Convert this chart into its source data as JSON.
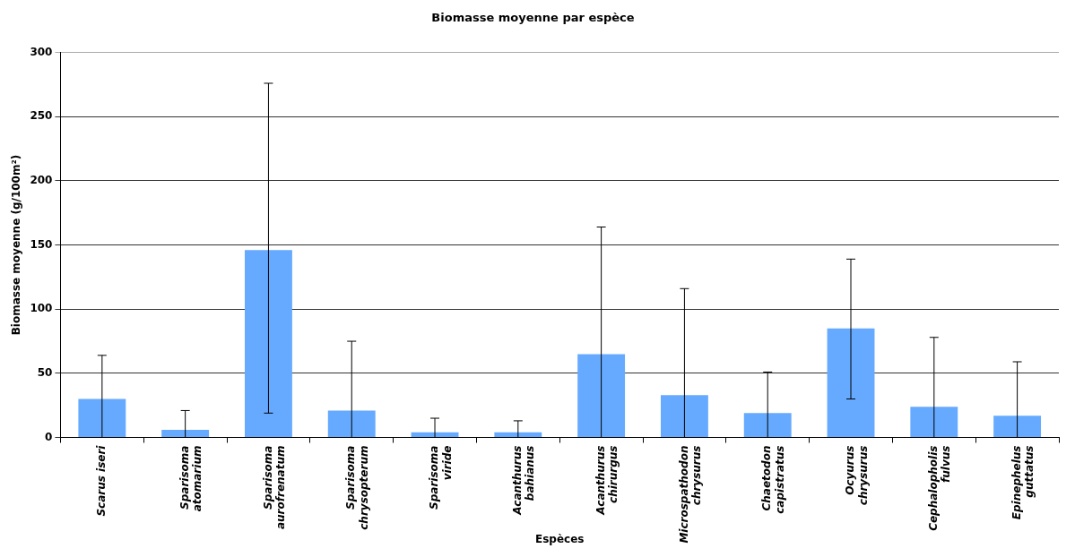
{
  "chart_data": {
    "type": "bar",
    "title": "Biomasse moyenne par espèce",
    "xlabel": "Espèces",
    "ylabel": "Biomasse moyenne (g/100m²)",
    "categories": [
      "Scarus iseri",
      "Sparisoma atomarium",
      "Sparisoma aurofrenatum",
      "Sparisoma chrysopterum",
      "Sparisoma viride",
      "Acanthurus bahianus",
      "Acanthurus chirurgus",
      "Microspathodon chrysurus",
      "Chaetodon capistratus",
      "Ocyurus chrysurus",
      "Cephalopholis fulvus",
      "Epinephelus guttatus"
    ],
    "values": [
      30,
      6,
      146,
      21,
      4,
      4,
      65,
      33,
      19,
      85,
      24,
      17
    ],
    "errors": [
      [
        0,
        64
      ],
      [
        0,
        21
      ],
      [
        19,
        276
      ],
      [
        0,
        75
      ],
      [
        0,
        15
      ],
      [
        0,
        13
      ],
      [
        0,
        164
      ],
      [
        0,
        116
      ],
      [
        0,
        51
      ],
      [
        30,
        139
      ],
      [
        0,
        78
      ],
      [
        0,
        59
      ]
    ],
    "color": "#66aaff",
    "ylim": [
      0,
      300
    ],
    "yticks": [
      0,
      50,
      100,
      150,
      200,
      250,
      300
    ],
    "grid": "y",
    "legend": false
  }
}
